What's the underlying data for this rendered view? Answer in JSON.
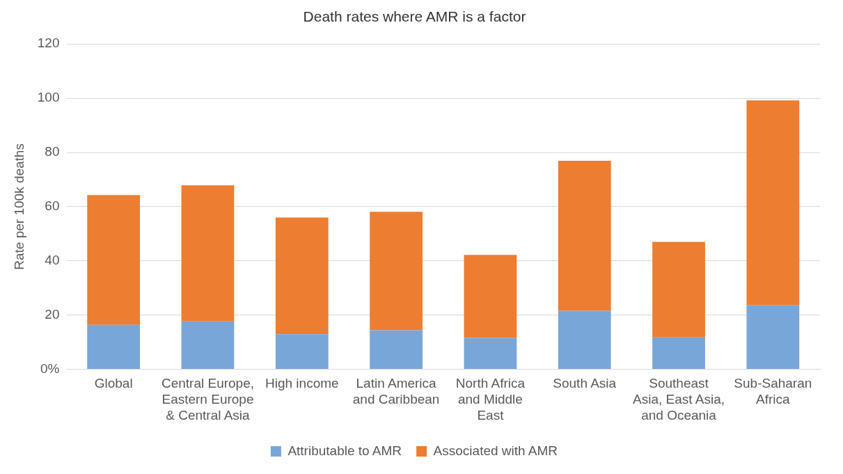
{
  "chart_data": {
    "type": "bar",
    "title": "Death rates where AMR is a factor",
    "ylabel": "Rate per 100k deaths",
    "categories": [
      "Global",
      "Central Europe,\nEastern Europe\n& Central Asia",
      "High income",
      "Latin America\nand Caribbean",
      "North Africa\nand Middle\nEast",
      "South Asia",
      "Southeast\nAsia, East Asia,\nand Oceania",
      "Sub-Saharan\nAfrica"
    ],
    "series": [
      {
        "name": "Attributable to AMR",
        "color": "#78a6d8",
        "values": [
          16.4,
          17.7,
          12.9,
          14.4,
          11.6,
          21.6,
          11.8,
          23.7
        ]
      },
      {
        "name": "Associated with AMR",
        "color": "#ed7d31",
        "values": [
          47.9,
          50.2,
          43.1,
          43.7,
          30.6,
          55.3,
          35.2,
          75.5
        ]
      }
    ],
    "stacked": true,
    "ylim": [
      0,
      120
    ],
    "yticks": [
      {
        "value": 0,
        "label": "0%"
      },
      20,
      40,
      60,
      80,
      100,
      120
    ],
    "grid": "y",
    "legend": "bottom"
  }
}
